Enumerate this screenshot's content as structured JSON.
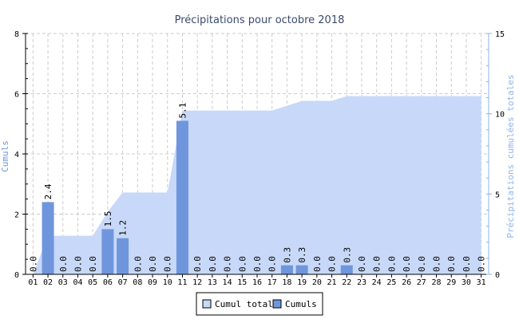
{
  "chart_data": {
    "type": "bar",
    "title": "Précipitations pour octobre 2018",
    "ylabel": "Cumuls",
    "y2label": "Précipitations cumulées totales",
    "ylim": [
      0,
      8
    ],
    "y2lim": [
      0,
      15
    ],
    "yticks": [
      "0",
      "2",
      "4",
      "6",
      "8"
    ],
    "y2ticks": [
      "0",
      "5",
      "10",
      "15"
    ],
    "grid": true,
    "legend_position": "bottom",
    "categories": [
      "01",
      "02",
      "03",
      "04",
      "05",
      "06",
      "07",
      "08",
      "09",
      "10",
      "11",
      "12",
      "13",
      "14",
      "15",
      "16",
      "17",
      "18",
      "19",
      "20",
      "21",
      "22",
      "23",
      "24",
      "25",
      "26",
      "27",
      "28",
      "29",
      "30",
      "31"
    ],
    "series": [
      {
        "name": "Cumul total",
        "type": "area",
        "axis": "right",
        "color": "#c8d8f8",
        "values": [
          0.0,
          2.4,
          2.4,
          2.4,
          2.4,
          3.9,
          5.1,
          5.1,
          5.1,
          5.1,
          10.2,
          10.2,
          10.2,
          10.2,
          10.2,
          10.2,
          10.2,
          10.5,
          10.8,
          10.8,
          10.8,
          11.1,
          11.1,
          11.1,
          11.1,
          11.1,
          11.1,
          11.1,
          11.1,
          11.1,
          11.1
        ]
      },
      {
        "name": "Cumuls",
        "type": "bar",
        "axis": "left",
        "color": "#6f96dd",
        "values": [
          0.0,
          2.4,
          0.0,
          0.0,
          0.0,
          1.5,
          1.2,
          0.0,
          0.0,
          0.0,
          5.1,
          0.0,
          0.0,
          0.0,
          0.0,
          0.0,
          0.0,
          0.3,
          0.3,
          0.0,
          0.0,
          0.3,
          0.0,
          0.0,
          0.0,
          0.0,
          0.0,
          0.0,
          0.0,
          0.0,
          0.0
        ],
        "labels": [
          "0.0",
          "2.4",
          "0.0",
          "0.0",
          "0.0",
          "1.5",
          "1.2",
          "0.0",
          "0.0",
          "0.0",
          "5.1",
          "0.0",
          "0.0",
          "0.0",
          "0.0",
          "0.0",
          "0.0",
          "0.3",
          "0.3",
          "0.0",
          "0.0",
          "0.3",
          "0.0",
          "0.0",
          "0.0",
          "0.0",
          "0.0",
          "0.0",
          "0.0",
          "0.0",
          "0.0"
        ]
      }
    ]
  },
  "colors": {
    "title": "#3b4a6b",
    "left_axis_label": "#6f96dd",
    "right_axis_label": "#8fb3e8",
    "right_axis": "#8fb3e8",
    "grid": "#cccccc",
    "area_fill": "#c8d8f8",
    "bar_fill": "#6f96dd"
  }
}
